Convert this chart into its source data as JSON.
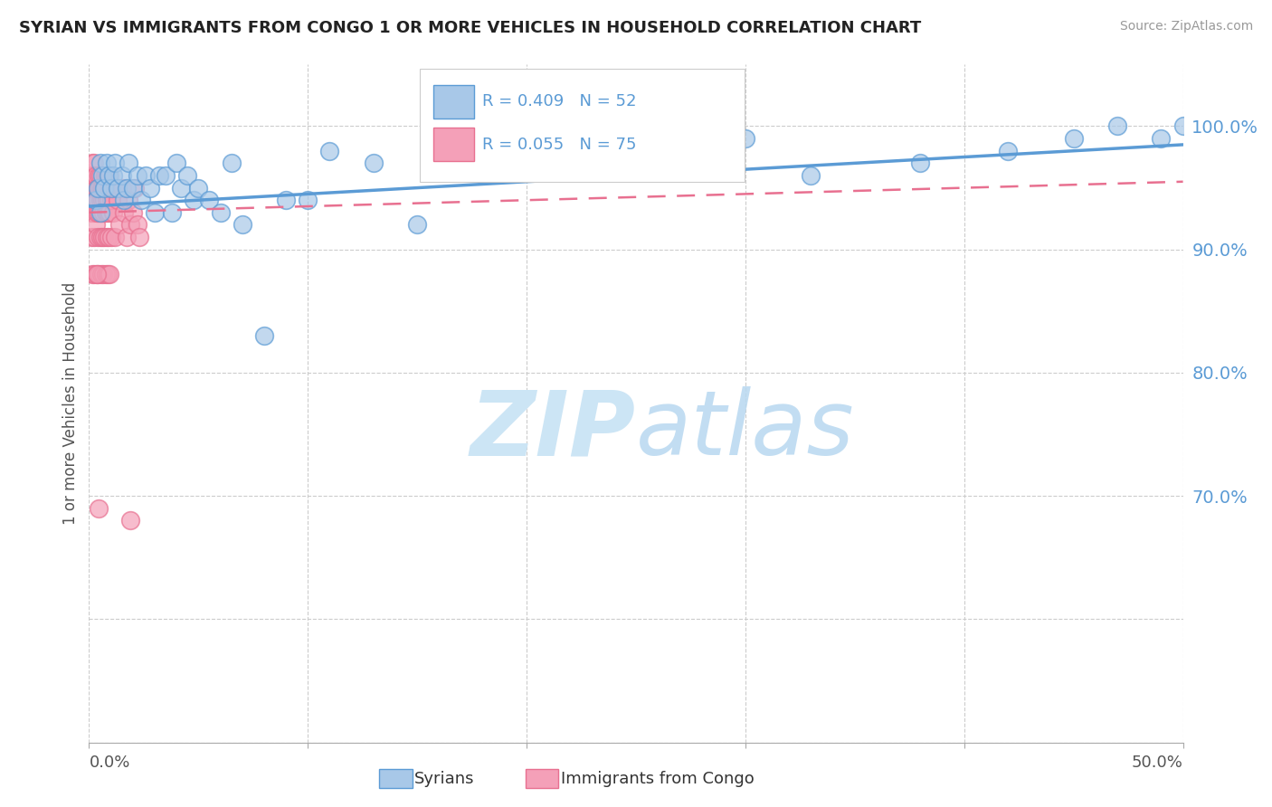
{
  "title": "SYRIAN VS IMMIGRANTS FROM CONGO 1 OR MORE VEHICLES IN HOUSEHOLD CORRELATION CHART",
  "source": "Source: ZipAtlas.com",
  "ylabel": "1 or more Vehicles in Household",
  "yticks": [
    "100.0%",
    "90.0%",
    "80.0%",
    "70.0%"
  ],
  "ytick_vals": [
    100,
    90,
    80,
    70
  ],
  "xlim": [
    0,
    50
  ],
  "ylim": [
    50,
    105
  ],
  "legend_label_syrian": "Syrians",
  "legend_label_congo": "Immigrants from Congo",
  "syrian_color": "#5b9bd5",
  "congo_color": "#e87090",
  "syrian_fill": "#a8c8e8",
  "congo_fill": "#f4a0b8",
  "watermark": "ZIPatlas",
  "watermark_color": "#cce5f5",
  "background_color": "#ffffff",
  "syrian_scatter_x": [
    0.3,
    0.4,
    0.5,
    0.5,
    0.6,
    0.7,
    0.8,
    0.9,
    1.0,
    1.1,
    1.2,
    1.3,
    1.5,
    1.6,
    1.7,
    1.8,
    2.0,
    2.2,
    2.4,
    2.6,
    2.8,
    3.0,
    3.2,
    3.5,
    3.8,
    4.0,
    4.2,
    4.5,
    4.8,
    5.0,
    5.5,
    6.0,
    6.5,
    7.0,
    8.0,
    9.0,
    10.0,
    11.0,
    13.0,
    15.0,
    17.0,
    20.0,
    25.0,
    28.0,
    30.0,
    33.0,
    38.0,
    42.0,
    45.0,
    47.0,
    49.0,
    50.0
  ],
  "syrian_scatter_y": [
    94,
    95,
    97,
    93,
    96,
    95,
    97,
    96,
    95,
    96,
    97,
    95,
    96,
    94,
    95,
    97,
    95,
    96,
    94,
    96,
    95,
    93,
    96,
    96,
    93,
    97,
    95,
    96,
    94,
    95,
    94,
    93,
    97,
    92,
    83,
    94,
    94,
    98,
    97,
    92,
    97,
    99,
    98,
    98,
    99,
    96,
    97,
    98,
    99,
    100,
    99,
    100
  ],
  "congo_scatter_x": [
    0.05,
    0.08,
    0.1,
    0.12,
    0.15,
    0.15,
    0.18,
    0.2,
    0.2,
    0.22,
    0.25,
    0.25,
    0.28,
    0.3,
    0.3,
    0.32,
    0.35,
    0.35,
    0.38,
    0.4,
    0.4,
    0.42,
    0.45,
    0.45,
    0.48,
    0.5,
    0.5,
    0.52,
    0.55,
    0.55,
    0.58,
    0.6,
    0.6,
    0.62,
    0.65,
    0.65,
    0.68,
    0.7,
    0.7,
    0.72,
    0.75,
    0.75,
    0.78,
    0.8,
    0.8,
    0.82,
    0.85,
    0.85,
    0.88,
    0.9,
    0.9,
    0.92,
    0.95,
    0.95,
    0.98,
    1.0,
    1.0,
    1.05,
    1.1,
    1.15,
    1.2,
    1.3,
    1.4,
    1.5,
    1.6,
    1.7,
    1.8,
    1.9,
    2.0,
    2.1,
    2.2,
    2.3,
    1.9,
    0.35,
    0.42
  ],
  "congo_scatter_y": [
    93,
    95,
    96,
    91,
    97,
    88,
    95,
    93,
    96,
    91,
    97,
    88,
    94,
    95,
    92,
    96,
    93,
    88,
    95,
    94,
    91,
    96,
    93,
    88,
    95,
    94,
    91,
    96,
    93,
    88,
    95,
    94,
    91,
    95,
    93,
    88,
    95,
    94,
    91,
    96,
    93,
    88,
    95,
    94,
    91,
    96,
    93,
    88,
    95,
    94,
    91,
    96,
    93,
    88,
    95,
    94,
    91,
    95,
    93,
    95,
    91,
    94,
    92,
    95,
    93,
    91,
    94,
    92,
    93,
    95,
    92,
    91,
    68,
    88,
    69
  ],
  "trend_syrian_x0": 0,
  "trend_syrian_x1": 50,
  "trend_syrian_y0": 93.5,
  "trend_syrian_y1": 98.5,
  "trend_congo_x0": 0,
  "trend_congo_x1": 50,
  "trend_congo_y0": 93.0,
  "trend_congo_y1": 95.5
}
